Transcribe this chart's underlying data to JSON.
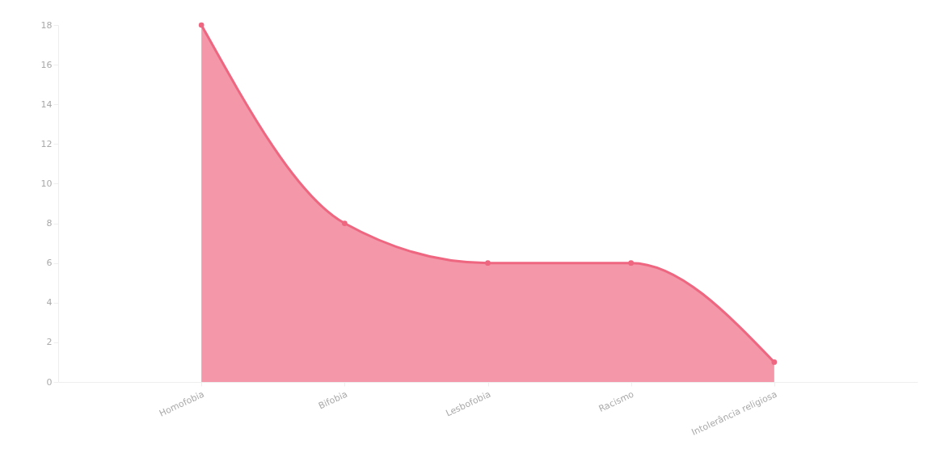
{
  "chart_data": {
    "type": "area",
    "categories": [
      "Homofobia",
      "Bifobia",
      "Lesbofobia",
      "Racismo",
      "Intolerância religiosa"
    ],
    "series": [
      {
        "color": "#ee6680",
        "values": [
          18,
          8,
          6,
          6,
          1
        ]
      }
    ],
    "ylim": [
      0,
      18
    ],
    "yticks": [
      0,
      2,
      4,
      6,
      8,
      10,
      12,
      14,
      16,
      18
    ],
    "marker": "circle",
    "line_style": "solid"
  }
}
